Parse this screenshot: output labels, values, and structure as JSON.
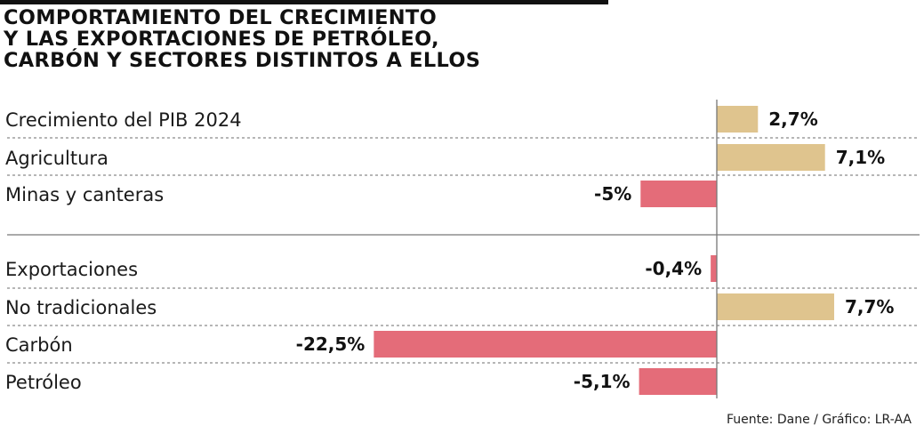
{
  "title_lines": [
    "COMPORTAMIENTO DEL CRECIMIENTO",
    "Y LAS EXPORTACIONES DE PETRÓLEO,",
    "CARBÓN Y SECTORES DISTINTOS A ELLOS"
  ],
  "source": "Fuente: Dane / Gráfico: LR-AA",
  "colors": {
    "positive": "#dfc48e",
    "negative": "#e46c79",
    "dotted_line": "#8a8a8a",
    "axis": "#777777",
    "group_separator": "#777777"
  },
  "chart_data": {
    "type": "bar",
    "orientation": "horizontal",
    "grid": false,
    "categories": [
      "Crecimiento del PIB 2024",
      "Agricultura",
      "Minas y canteras",
      "Exportaciones",
      "No tradicionales",
      "Carbón",
      "Petróleo"
    ],
    "values": [
      2.7,
      7.1,
      -5,
      -0.4,
      7.7,
      -22.5,
      -5.1
    ],
    "value_labels": [
      "2,7%",
      "7,1%",
      "-5%",
      "-0,4%",
      "7,7%",
      "-22,5%",
      "-5,1%"
    ],
    "groups": [
      {
        "categories": [
          "Crecimiento del PIB 2024",
          "Agricultura",
          "Minas y canteras"
        ]
      },
      {
        "categories": [
          "Exportaciones",
          "No tradicionales",
          "Carbón",
          "Petróleo"
        ]
      }
    ],
    "unit": "%"
  }
}
